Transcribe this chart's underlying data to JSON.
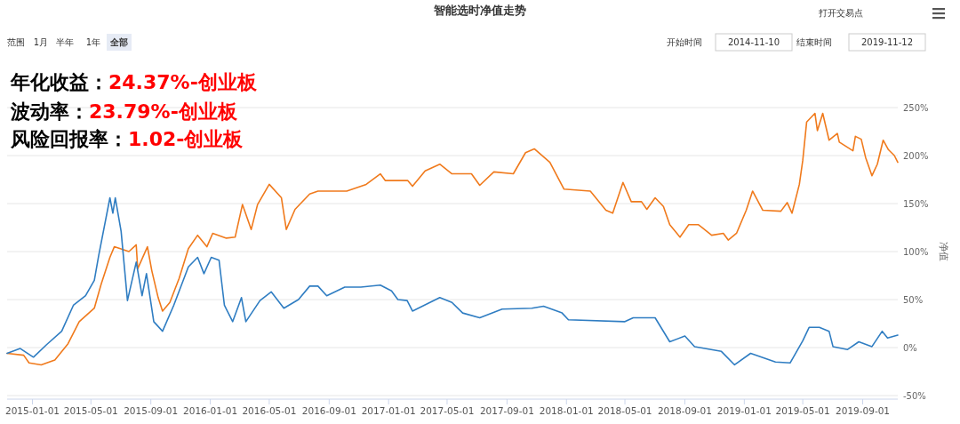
{
  "chart_data": {
    "type": "line",
    "title": "智能选时净值走势",
    "ylabel": "净值",
    "annotations": [
      "年化收益：24.37%-创业板",
      "波动率：23.79%-创业板",
      "风险回报率：1.02-创业板",
      "打开交易点",
      "范围",
      "1月",
      "半年",
      "1年",
      "全部",
      "开始时间",
      "2014-11-10",
      "结束时间",
      "2019-11-12"
    ],
    "xlim": [
      "2014-11-10",
      "2019-11-12"
    ],
    "xticks": [
      "2015-01-01",
      "2015-05-01",
      "2015-09-01",
      "2016-01-01",
      "2016-05-01",
      "2016-09-01",
      "2017-01-01",
      "2017-05-01",
      "2017-09-01",
      "2018-01-01",
      "2018-05-01",
      "2018-09-01",
      "2019-01-01",
      "2019-05-01",
      "2019-09-01"
    ],
    "ylim": [
      -50,
      250
    ],
    "yticks": [
      {
        "value": -50,
        "label": "-50%"
      },
      {
        "value": 0,
        "label": "0%"
      },
      {
        "value": 50,
        "label": "50%"
      },
      {
        "value": 100,
        "label": "100%"
      },
      {
        "value": 150,
        "label": "150%"
      },
      {
        "value": 200,
        "label": "200%"
      },
      {
        "value": 250,
        "label": "250%"
      }
    ],
    "grid": "y",
    "marker": "none",
    "line_style": "solid",
    "series": [
      {
        "color": "#f07a1c",
        "x": [
          "2014-11-10",
          "2014-12-14",
          "2014-12-25",
          "2015-01-19",
          "2015-02-16",
          "2015-03-15",
          "2015-04-07",
          "2015-05-08",
          "2015-05-22",
          "2015-06-09",
          "2015-06-18",
          "2015-07-18",
          "2015-08-02",
          "2015-08-05",
          "2015-08-25",
          "2015-09-03",
          "2015-09-16",
          "2015-09-25",
          "2015-10-10",
          "2015-10-29",
          "2015-11-17",
          "2015-12-06",
          "2015-12-25",
          "2016-01-06",
          "2016-02-03",
          "2016-02-21",
          "2016-03-07",
          "2016-03-25",
          "2016-04-07",
          "2016-05-01",
          "2016-05-26",
          "2016-06-05",
          "2016-06-23",
          "2016-07-23",
          "2016-08-09",
          "2016-10-07",
          "2016-11-16",
          "2016-12-15",
          "2016-12-25",
          "2017-02-09",
          "2017-02-19",
          "2017-03-17",
          "2017-04-16",
          "2017-05-11",
          "2017-06-20",
          "2017-07-07",
          "2017-08-05",
          "2017-09-14",
          "2017-10-09",
          "2017-10-27",
          "2017-11-28",
          "2017-12-27",
          "2018-02-19",
          "2018-03-23",
          "2018-04-06",
          "2018-04-27",
          "2018-05-14",
          "2018-06-04",
          "2018-06-15",
          "2018-07-02",
          "2018-07-19",
          "2018-08-01",
          "2018-08-22",
          "2018-09-09",
          "2018-09-29",
          "2018-10-26",
          "2018-11-19",
          "2018-11-29",
          "2018-12-16",
          "2019-01-05",
          "2019-01-18",
          "2019-02-08",
          "2019-03-17",
          "2019-03-30",
          "2019-04-09",
          "2019-04-24",
          "2019-05-01",
          "2019-05-09",
          "2019-05-26",
          "2019-05-31",
          "2019-06-11",
          "2019-06-24",
          "2019-07-11",
          "2019-07-15",
          "2019-08-12",
          "2019-08-17",
          "2019-08-29",
          "2019-09-07",
          "2019-09-20",
          "2019-10-01",
          "2019-10-13",
          "2019-10-24",
          "2019-11-05",
          "2019-11-12"
        ],
        "values": [
          -6,
          -8,
          -16,
          -18,
          -13,
          4,
          27,
          41,
          66,
          94,
          105,
          100,
          107,
          82,
          105,
          80,
          52,
          38,
          47,
          72,
          103,
          117,
          105,
          119,
          114,
          115,
          149,
          123,
          149,
          170,
          156,
          123,
          144,
          160,
          163,
          163,
          170,
          181,
          174,
          174,
          168,
          184,
          191,
          181,
          181,
          169,
          183,
          181,
          203,
          207,
          193,
          165,
          163,
          143,
          140,
          172,
          152,
          152,
          144,
          156,
          147,
          128,
          115,
          128,
          128,
          117,
          119,
          112,
          119,
          143,
          163,
          143,
          142,
          151,
          140,
          170,
          195,
          235,
          244,
          226,
          244,
          216,
          223,
          214,
          205,
          220,
          217,
          198,
          179,
          191,
          216,
          206,
          200,
          193
        ]
      },
      {
        "color": "#2f7dc2",
        "x": [
          "2014-11-10",
          "2014-12-07",
          "2015-01-03",
          "2015-01-30",
          "2015-03-02",
          "2015-03-26",
          "2015-04-20",
          "2015-05-08",
          "2015-05-17",
          "2015-06-09",
          "2015-06-15",
          "2015-06-20",
          "2015-07-02",
          "2015-07-15",
          "2015-08-02",
          "2015-08-14",
          "2015-08-23",
          "2015-09-07",
          "2015-09-25",
          "2015-10-18",
          "2015-11-17",
          "2015-12-06",
          "2015-12-19",
          "2016-01-03",
          "2016-01-19",
          "2016-01-30",
          "2016-02-16",
          "2016-03-05",
          "2016-03-14",
          "2016-04-12",
          "2016-05-05",
          "2016-05-31",
          "2016-06-30",
          "2016-07-23",
          "2016-08-09",
          "2016-08-27",
          "2016-10-03",
          "2016-11-05",
          "2016-12-15",
          "2017-01-07",
          "2017-01-20",
          "2017-02-08",
          "2017-02-19",
          "2017-04-16",
          "2017-05-11",
          "2017-06-02",
          "2017-07-07",
          "2017-08-22",
          "2017-10-22",
          "2017-11-15",
          "2017-12-23",
          "2018-01-05",
          "2018-05-01",
          "2018-05-18",
          "2018-07-02",
          "2018-08-01",
          "2018-09-01",
          "2018-09-21",
          "2018-11-15",
          "2018-12-12",
          "2019-01-14",
          "2019-03-06",
          "2019-04-05",
          "2019-05-01",
          "2019-05-14",
          "2019-06-04",
          "2019-06-24",
          "2019-07-02",
          "2019-08-01",
          "2019-08-24",
          "2019-09-20",
          "2019-10-11",
          "2019-10-22",
          "2019-11-12"
        ],
        "values": [
          -6,
          -1,
          -10,
          3,
          17,
          44,
          54,
          70,
          96,
          156,
          140,
          156,
          121,
          49,
          89,
          54,
          77,
          27,
          17,
          44,
          84,
          94,
          77,
          94,
          91,
          44,
          27,
          52,
          27,
          49,
          58,
          41,
          50,
          64,
          64,
          54,
          63,
          63,
          65,
          59,
          50,
          49,
          38,
          52,
          47,
          36,
          31,
          40,
          41,
          43,
          36,
          29,
          27,
          31,
          31,
          6,
          12,
          1,
          -4,
          -18,
          -6,
          -15,
          -16,
          7,
          21,
          21,
          17,
          1,
          -2,
          6,
          1,
          17,
          10,
          13
        ]
      }
    ]
  }
}
